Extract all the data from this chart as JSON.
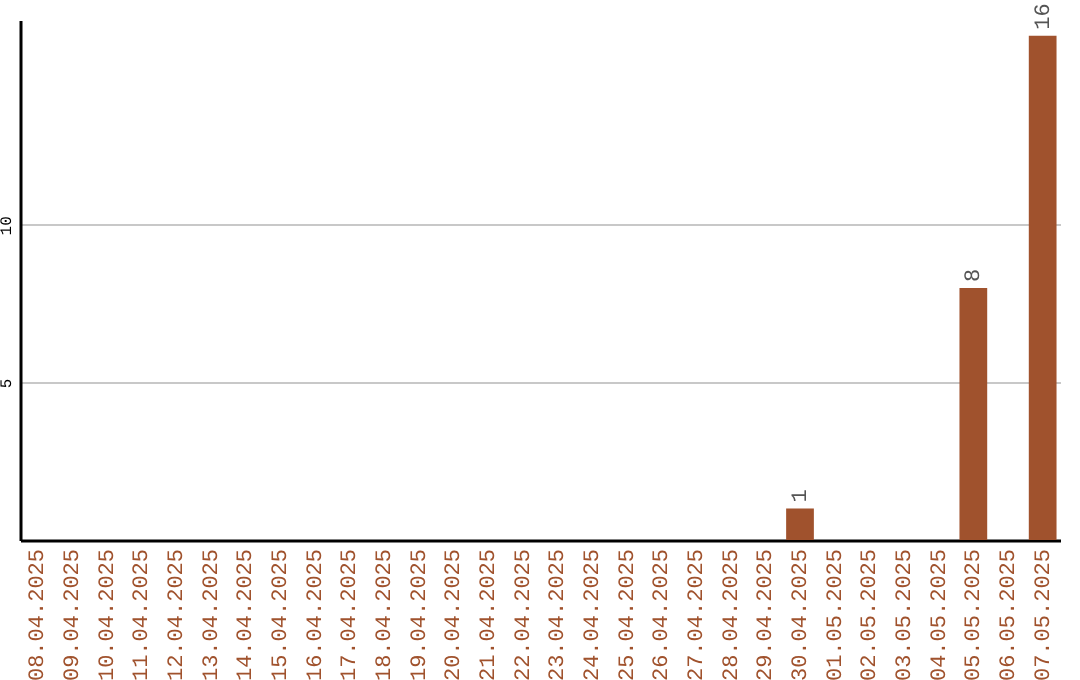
{
  "chart_data": {
    "type": "bar",
    "categories": [
      "08.04.2025",
      "09.04.2025",
      "10.04.2025",
      "11.04.2025",
      "12.04.2025",
      "13.04.2025",
      "14.04.2025",
      "15.04.2025",
      "16.04.2025",
      "17.04.2025",
      "18.04.2025",
      "19.04.2025",
      "20.04.2025",
      "21.04.2025",
      "22.04.2025",
      "23.04.2025",
      "24.04.2025",
      "25.04.2025",
      "26.04.2025",
      "27.04.2025",
      "28.04.2025",
      "29.04.2025",
      "30.04.2025",
      "01.05.2025",
      "02.05.2025",
      "03.05.2025",
      "04.05.2025",
      "05.05.2025",
      "06.05.2025",
      "07.05.2025"
    ],
    "values": [
      0,
      0,
      0,
      0,
      0,
      0,
      0,
      0,
      0,
      0,
      0,
      0,
      0,
      0,
      0,
      0,
      0,
      0,
      0,
      0,
      0,
      0,
      1,
      0,
      0,
      0,
      0,
      8,
      0,
      16
    ],
    "value_labels": [
      null,
      null,
      null,
      null,
      null,
      null,
      null,
      null,
      null,
      null,
      null,
      null,
      null,
      null,
      null,
      null,
      null,
      null,
      null,
      null,
      null,
      null,
      "1",
      null,
      null,
      null,
      null,
      "8",
      null,
      "16"
    ],
    "color": "#a0522d",
    "ylim": [
      0,
      16.5
    ],
    "yticks": [
      5,
      10
    ],
    "grid": "y"
  }
}
